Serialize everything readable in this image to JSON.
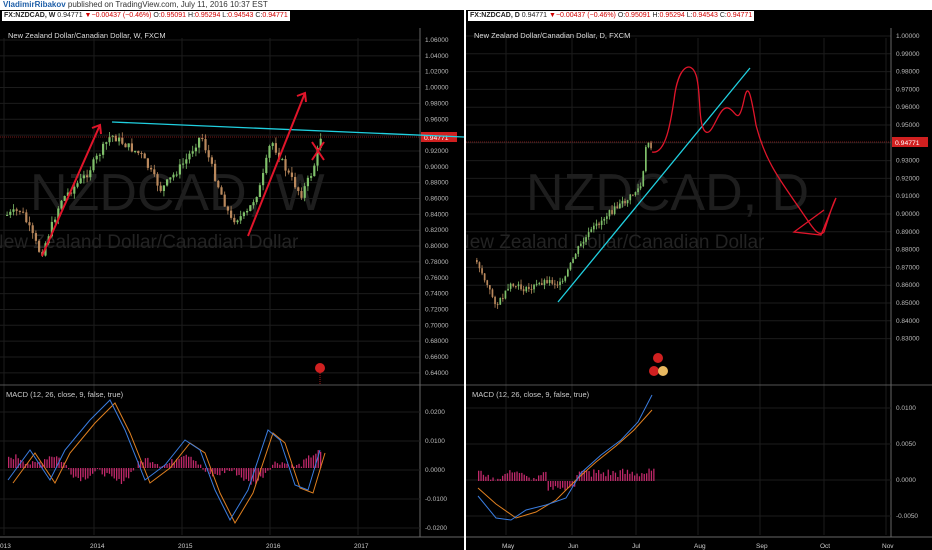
{
  "header": {
    "author": "VladimirRibakov",
    "published": " published on TradingView.com, July 11, 2016 10:37 EST"
  },
  "quote": {
    "symbol_w": "FX:NZDCAD, W",
    "symbol_d": "FX:NZDCAD, D",
    "price": "0.94771",
    "change": "−0.00437 (−0.46%)",
    "o_label": "O:",
    "o": "0.95091",
    "h_label": "H:",
    "h": "0.95294",
    "l_label": "L:",
    "l": "0.94543",
    "c_label": "C:",
    "c": "0.94771"
  },
  "left": {
    "title": "New Zealand Dollar/Canadian Dollar, W, FXCM",
    "watermark": "NZDCAD, W",
    "watermark2": "New Zealand Dollar/Canadian Dollar",
    "macd_title": "MACD (12, 26, close, 9, false, true)",
    "price_ticks": [
      "1.06000",
      "1.04000",
      "1.02000",
      "1.00000",
      "0.98000",
      "0.96000",
      "0.94000",
      "0.92000",
      "0.90000",
      "0.88000",
      "0.86000",
      "0.84000",
      "0.82000",
      "0.80000",
      "0.78000",
      "0.76000",
      "0.74000",
      "0.72000",
      "0.70000",
      "0.68000",
      "0.66000",
      "0.64000"
    ],
    "macd_ticks": [
      "0.0200",
      "0.0100",
      "0.0000",
      "-0.0100",
      "-0.0200"
    ],
    "time_ticks": [
      "013",
      "2014",
      "2015",
      "2016",
      "2017"
    ],
    "price_tag": "0.94771"
  },
  "right": {
    "title": "New Zealand Dollar/Canadian Dollar, D, FXCM",
    "watermark": "NZDCAD, D",
    "watermark2": "New Zealand Dollar/Canadian Dollar",
    "macd_title": "MACD (12, 26, close, 9, false, true)",
    "price_ticks": [
      "1.00000",
      "0.99000",
      "0.98000",
      "0.97000",
      "0.96000",
      "0.95000",
      "0.94000",
      "0.93000",
      "0.92000",
      "0.91000",
      "0.90000",
      "0.89000",
      "0.88000",
      "0.87000",
      "0.86000",
      "0.85000",
      "0.84000",
      "0.83000"
    ],
    "macd_ticks": [
      "0.0100",
      "0.0050",
      "0.0000",
      "-0.0050"
    ],
    "time_ticks": [
      "May",
      "Jun",
      "Jul",
      "Aug",
      "Sep",
      "Oct",
      "Nov"
    ],
    "price_tag": "0.94771"
  },
  "colors": {
    "up": "#7fc06a",
    "down": "#b9885c",
    "trend": "#20d0e0",
    "arrow": "#e0152a",
    "macd": "#3a7de0",
    "signal": "#e08020",
    "hist": "#c0286a",
    "tag": "#d02020"
  }
}
